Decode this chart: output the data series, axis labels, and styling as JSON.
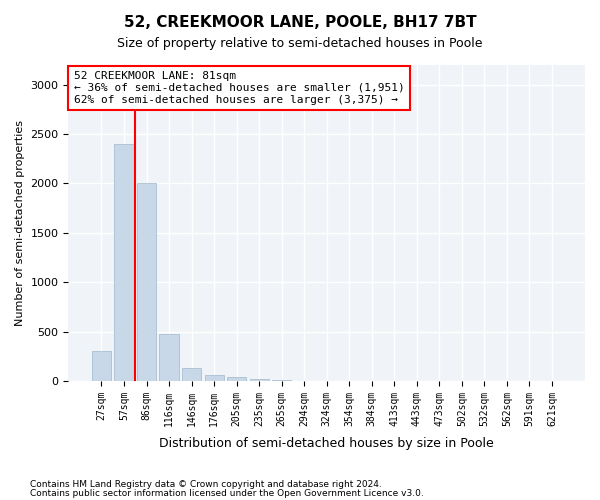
{
  "title1": "52, CREEKMOOR LANE, POOLE, BH17 7BT",
  "title2": "Size of property relative to semi-detached houses in Poole",
  "xlabel": "Distribution of semi-detached houses by size in Poole",
  "ylabel": "Number of semi-detached properties",
  "footer1": "Contains HM Land Registry data © Crown copyright and database right 2024.",
  "footer2": "Contains public sector information licensed under the Open Government Licence v3.0.",
  "bins": [
    "27sqm",
    "57sqm",
    "86sqm",
    "116sqm",
    "146sqm",
    "176sqm",
    "205sqm",
    "235sqm",
    "265sqm",
    "294sqm",
    "324sqm",
    "354sqm",
    "384sqm",
    "413sqm",
    "443sqm",
    "473sqm",
    "502sqm",
    "532sqm",
    "562sqm",
    "591sqm",
    "621sqm"
  ],
  "values": [
    300,
    2400,
    2000,
    480,
    130,
    60,
    40,
    20,
    5,
    0,
    0,
    0,
    0,
    0,
    0,
    0,
    0,
    0,
    0,
    0,
    0
  ],
  "bar_color": "#c8d8e8",
  "bar_edge_color": "#a0b8cc",
  "highlight_line_color": "red",
  "annotation_text": "52 CREEKMOOR LANE: 81sqm\n← 36% of semi-detached houses are smaller (1,951)\n62% of semi-detached houses are larger (3,375) →",
  "annotation_box_color": "white",
  "annotation_box_edge_color": "red",
  "ylim": [
    0,
    3200
  ],
  "yticks": [
    0,
    500,
    1000,
    1500,
    2000,
    2500,
    3000
  ],
  "background_color": "#f0f4f8",
  "grid_color": "white"
}
